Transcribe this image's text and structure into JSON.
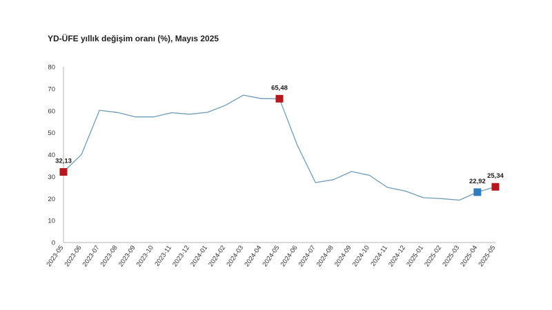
{
  "title": "YD-ÜFE yıllık değişim oranı (%), Mayıs 2025",
  "chart_data": {
    "type": "line",
    "title": "YD-ÜFE yıllık değişim oranı (%), Mayıs 2025",
    "xlabel": "",
    "ylabel": "",
    "ylim": [
      0,
      80
    ],
    "yticks": [
      0,
      10,
      20,
      30,
      40,
      50,
      60,
      70,
      80
    ],
    "grid": false,
    "categories": [
      "2023-05",
      "2023-06",
      "2023-07",
      "2023-08",
      "2023-09",
      "2023-10",
      "2023-11",
      "2023-12",
      "2024-01",
      "2024-02",
      "2024-03",
      "2024-04",
      "2024-05",
      "2024-06",
      "2024-07",
      "2024-08",
      "2024-09",
      "2024-10",
      "2024-11",
      "2024-12",
      "2025-01",
      "2025-02",
      "2025-03",
      "2025-04",
      "2025-05"
    ],
    "series": [
      {
        "color": "#6f9bb8",
        "values": [
          32.13,
          40.1,
          60.2,
          59.2,
          57.2,
          57.2,
          59.1,
          58.4,
          59.3,
          62.5,
          67.1,
          65.5,
          65.48,
          44.1,
          27.3,
          28.6,
          32.3,
          30.6,
          25.1,
          23.4,
          20.4,
          20.0,
          19.3,
          22.92,
          25.34
        ]
      }
    ],
    "highlights": [
      {
        "category": "2023-05",
        "value": 32.13,
        "label": "32,13",
        "color": "#b5171c",
        "position": "above"
      },
      {
        "category": "2024-05",
        "value": 65.48,
        "label": "65,48",
        "color": "#b5171c",
        "position": "above"
      },
      {
        "category": "2025-04",
        "value": 22.92,
        "label": "22,92",
        "color": "#2e7dbf",
        "position": "above"
      },
      {
        "category": "2025-05",
        "value": 25.34,
        "label": "25,34",
        "color": "#b5171c",
        "position": "above"
      }
    ]
  }
}
